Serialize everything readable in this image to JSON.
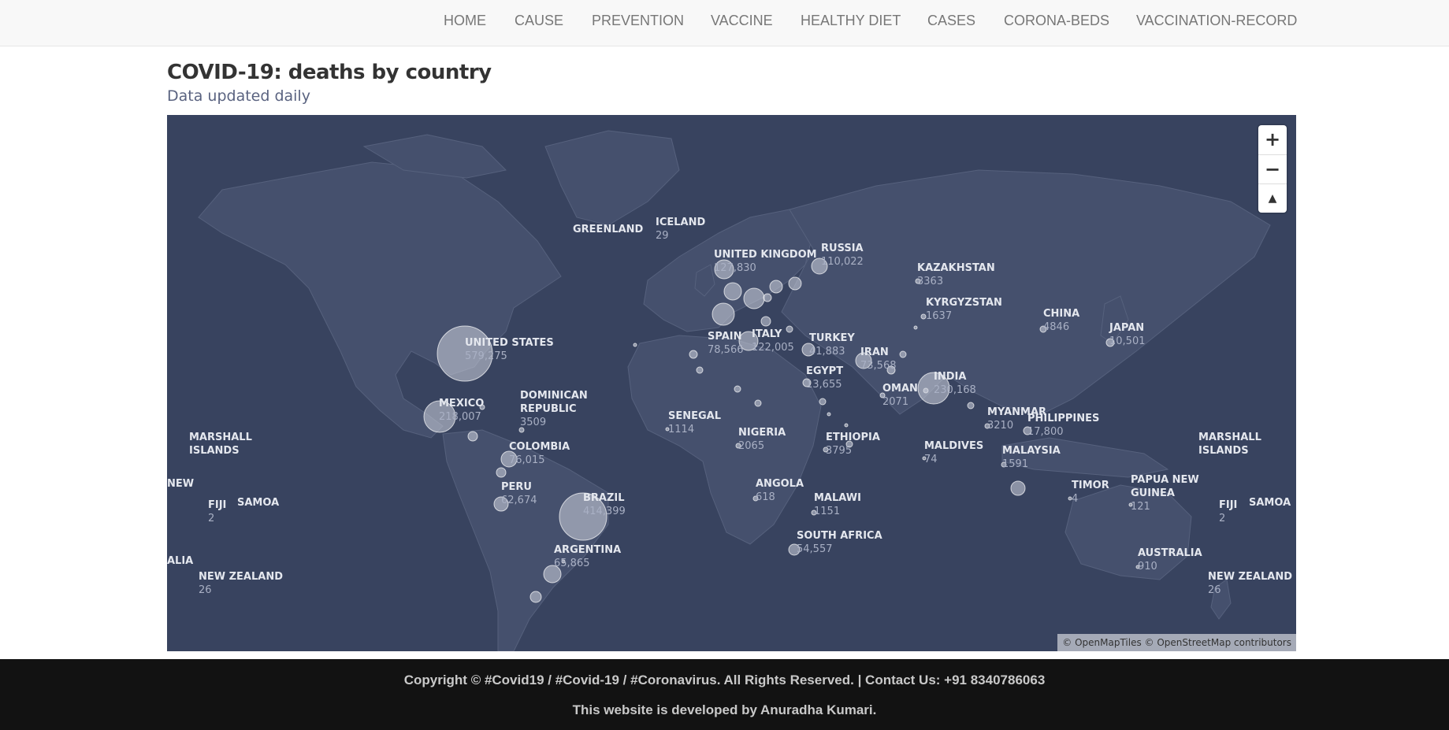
{
  "nav": {
    "items": [
      "HOME",
      "CAUSE",
      "PREVENTION",
      "VACCINE",
      "HEALTHY DIET",
      "CASES",
      "CORONA-BEDS",
      "VACCINATION-RECORD"
    ]
  },
  "page": {
    "title": "COVID-19: deaths by country",
    "subtitle": "Data updated daily"
  },
  "map": {
    "attribution": "© OpenMapTiles © OpenStreetMap contributors",
    "zoom_in_label": "+",
    "zoom_out_label": "−",
    "reset_label": "▲",
    "colors": {
      "ocean": "#38435f",
      "land": "#45506d",
      "bubble": "#cfd4df",
      "label": "#e4e7ee",
      "value": "#a9b0c4"
    },
    "countries": [
      {
        "name": "GREENLAND",
        "deaths": ""
      },
      {
        "name": "ICELAND",
        "deaths": "29"
      },
      {
        "name": "UNITED KINGDOM",
        "deaths": "127,830"
      },
      {
        "name": "RUSSIA",
        "deaths": "110,022"
      },
      {
        "name": "KAZAKHSTAN",
        "deaths": "3363"
      },
      {
        "name": "KYRGYZSTAN",
        "deaths": "1637"
      },
      {
        "name": "CHINA",
        "deaths": "4846"
      },
      {
        "name": "JAPAN",
        "deaths": "10,501"
      },
      {
        "name": "UNITED STATES",
        "deaths": "579,275"
      },
      {
        "name": "SPAIN",
        "deaths": "78,566"
      },
      {
        "name": "ITALY",
        "deaths": "122,005"
      },
      {
        "name": "TURKEY",
        "deaths": "41,883"
      },
      {
        "name": "IRAN",
        "deaths": "73,568"
      },
      {
        "name": "EGYPT",
        "deaths": "13,655"
      },
      {
        "name": "OMAN",
        "deaths": "2071"
      },
      {
        "name": "INDIA",
        "deaths": "230,168"
      },
      {
        "name": "MYANMAR",
        "deaths": "3210"
      },
      {
        "name": "PHILIPPINES",
        "deaths": "17,800"
      },
      {
        "name": "MEXICO",
        "deaths": "218,007"
      },
      {
        "name": "DOMINICAN REPUBLIC",
        "deaths": "3509"
      },
      {
        "name": "COLOMBIA",
        "deaths": "76,015"
      },
      {
        "name": "PERU",
        "deaths": "62,674"
      },
      {
        "name": "BRAZIL",
        "deaths": "414,399"
      },
      {
        "name": "ARGENTINA",
        "deaths": "65,865"
      },
      {
        "name": "SENEGAL",
        "deaths": "1114"
      },
      {
        "name": "NIGERIA",
        "deaths": "2065"
      },
      {
        "name": "ETHIOPIA",
        "deaths": "3795"
      },
      {
        "name": "ANGOLA",
        "deaths": "618"
      },
      {
        "name": "MALAWI",
        "deaths": "1151"
      },
      {
        "name": "SOUTH AFRICA",
        "deaths": "54,557"
      },
      {
        "name": "MALDIVES",
        "deaths": "74"
      },
      {
        "name": "MALAYSIA",
        "deaths": "1591"
      },
      {
        "name": "TIMOR",
        "deaths": "4"
      },
      {
        "name": "PAPUA NEW GUINEA",
        "deaths": "121"
      },
      {
        "name": "AUSTRALIA",
        "deaths": "910"
      },
      {
        "name": "NEW ZEALAND",
        "deaths": "26"
      },
      {
        "name": "FIJI",
        "deaths": "2"
      },
      {
        "name": "SAMOA",
        "deaths": ""
      },
      {
        "name": "MARSHALL ISLANDS",
        "deaths": ""
      },
      {
        "name": "NEW ZEALAND",
        "deaths": "26"
      },
      {
        "name": "FIJI",
        "deaths": "2"
      },
      {
        "name": "SAMOA",
        "deaths": ""
      },
      {
        "name": "MARSHALL ISLANDS",
        "deaths": ""
      },
      {
        "name": "NEW",
        "deaths": ""
      },
      {
        "name": "ALIA",
        "deaths": ""
      }
    ]
  },
  "footer": {
    "copyright": "Copyright © #Covid19 / #Covid-19 / #Coronavirus. All Rights Reserved. | Contact Us: +91 8340786063",
    "developer": "This website is developed by Anuradha Kumari."
  }
}
